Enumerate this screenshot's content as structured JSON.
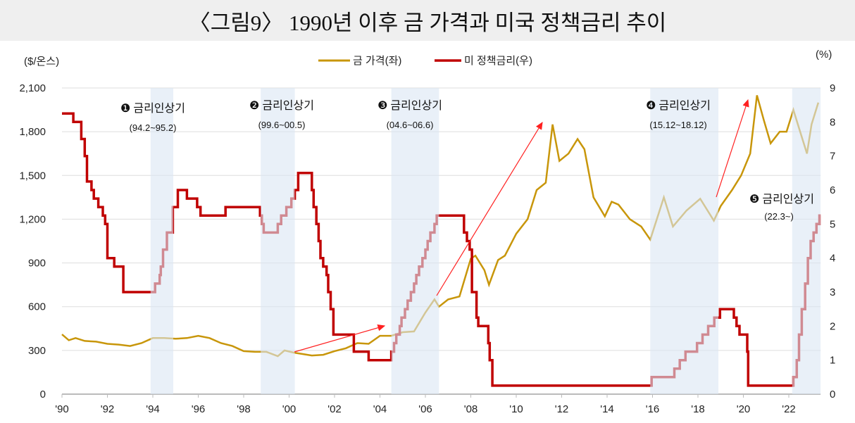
{
  "title": "〈그림9〉 1990년 이후 금 가격과 미국 정책금리 추이",
  "chart_data": {
    "type": "line",
    "title": "〈그림9〉 1990년 이후 금 가격과 미국 정책금리 추이",
    "left_axis_unit": "($/온스)",
    "right_axis_unit": "(%)",
    "ylim_left": [
      0,
      2100
    ],
    "ylim_right": [
      0,
      9
    ],
    "xlim": [
      1990,
      2023.4
    ],
    "left_ticks": [
      "0",
      "300",
      "600",
      "900",
      "1,200",
      "1,500",
      "1,800",
      "2,100"
    ],
    "right_ticks": [
      "0",
      "1",
      "2",
      "3",
      "4",
      "5",
      "6",
      "7",
      "8",
      "9"
    ],
    "x_ticks": [
      "'90",
      "'92",
      "'94",
      "'96",
      "'98",
      "'00",
      "'02",
      "'04",
      "'06",
      "'08",
      "'10",
      "'12",
      "'14",
      "'16",
      "'18",
      "'20",
      "'22"
    ],
    "grid": true,
    "legend_position": "top",
    "colors": {
      "gold": "#c8960a",
      "rate": "#c00000",
      "shade": "#dbe6f3",
      "arrow": "#ff2020"
    },
    "series": [
      {
        "name": "금 가격(좌)",
        "axis": "left",
        "x": [
          1990.0,
          1990.3,
          1990.6,
          1991.0,
          1991.5,
          1992.0,
          1992.5,
          1993.0,
          1993.5,
          1994.0,
          1994.5,
          1995.0,
          1995.5,
          1996.0,
          1996.5,
          1997.0,
          1997.5,
          1998.0,
          1998.5,
          1999.0,
          1999.5,
          1999.8,
          2000.2,
          2000.6,
          2001.0,
          2001.5,
          2002.0,
          2002.5,
          2003.0,
          2003.5,
          2004.0,
          2004.5,
          2005.0,
          2005.5,
          2006.0,
          2006.4,
          2006.6,
          2007.0,
          2007.5,
          2008.0,
          2008.2,
          2008.6,
          2008.8,
          2009.2,
          2009.5,
          2010.0,
          2010.5,
          2010.9,
          2011.3,
          2011.6,
          2011.9,
          2012.3,
          2012.7,
          2013.0,
          2013.4,
          2013.9,
          2014.2,
          2014.5,
          2015.0,
          2015.5,
          2015.9,
          2016.5,
          2016.9,
          2017.5,
          2018.1,
          2018.7,
          2019.0,
          2019.5,
          2019.9,
          2020.3,
          2020.6,
          2020.9,
          2021.2,
          2021.6,
          2021.9,
          2022.2,
          2022.5,
          2022.8,
          2023.0,
          2023.3
        ],
        "values": [
          410,
          370,
          385,
          365,
          360,
          345,
          340,
          330,
          350,
          385,
          385,
          380,
          385,
          400,
          385,
          350,
          330,
          295,
          290,
          290,
          260,
          300,
          285,
          275,
          265,
          270,
          295,
          315,
          350,
          345,
          400,
          400,
          425,
          430,
          560,
          650,
          600,
          650,
          670,
          930,
          950,
          850,
          750,
          920,
          950,
          1100,
          1200,
          1400,
          1450,
          1850,
          1600,
          1650,
          1750,
          1680,
          1350,
          1220,
          1320,
          1300,
          1200,
          1150,
          1060,
          1350,
          1150,
          1260,
          1340,
          1190,
          1290,
          1400,
          1500,
          1650,
          2050,
          1880,
          1720,
          1800,
          1800,
          1950,
          1800,
          1650,
          1850,
          2000
        ]
      },
      {
        "name": "미 정책금리(우)",
        "axis": "right",
        "step": true,
        "x": [
          1990.0,
          1990.5,
          1990.85,
          1991.0,
          1991.1,
          1991.3,
          1991.4,
          1991.6,
          1991.8,
          1991.9,
          1992.0,
          1992.3,
          1992.7,
          1994.1,
          1994.3,
          1994.35,
          1994.45,
          1994.62,
          1994.88,
          1995.1,
          1995.5,
          1995.95,
          1996.1,
          1997.2,
          1998.72,
          1998.8,
          1998.88,
          1999.5,
          1999.65,
          1999.88,
          2000.1,
          2000.25,
          2000.4,
          2001.0,
          2001.08,
          2001.2,
          2001.3,
          2001.38,
          2001.5,
          2001.65,
          2001.72,
          2001.83,
          2001.95,
          2002.85,
          2003.5,
          2004.5,
          2004.62,
          2004.72,
          2004.87,
          2004.95,
          2005.1,
          2005.22,
          2005.36,
          2005.5,
          2005.6,
          2005.72,
          2005.87,
          2006.0,
          2006.1,
          2006.22,
          2006.4,
          2006.5,
          2007.7,
          2007.83,
          2007.95,
          2008.05,
          2008.08,
          2008.25,
          2008.33,
          2008.77,
          2008.83,
          2008.95,
          2015.96,
          2016.96,
          2017.2,
          2017.45,
          2017.96,
          2018.2,
          2018.45,
          2018.72,
          2018.97,
          2019.58,
          2019.7,
          2019.83,
          2020.17,
          2020.21,
          2022.2,
          2022.35,
          2022.45,
          2022.57,
          2022.72,
          2022.84,
          2022.96,
          2023.09,
          2023.22,
          2023.35
        ],
        "values": [
          8.25,
          8.0,
          7.5,
          7.0,
          6.25,
          6.0,
          5.75,
          5.5,
          5.25,
          5.0,
          4.0,
          3.75,
          3.0,
          3.25,
          3.5,
          3.75,
          4.25,
          4.75,
          5.5,
          6.0,
          5.75,
          5.5,
          5.25,
          5.5,
          5.25,
          5.0,
          4.75,
          5.0,
          5.25,
          5.5,
          5.75,
          6.0,
          6.5,
          6.0,
          5.5,
          5.0,
          4.5,
          4.0,
          3.75,
          3.5,
          3.0,
          2.5,
          1.75,
          1.25,
          1.0,
          1.25,
          1.5,
          1.75,
          2.0,
          2.25,
          2.5,
          2.75,
          3.0,
          3.25,
          3.5,
          3.75,
          4.0,
          4.25,
          4.5,
          4.75,
          5.0,
          5.25,
          4.75,
          4.5,
          4.25,
          3.0,
          3.0,
          2.25,
          2.0,
          1.5,
          1.0,
          0.25,
          0.5,
          0.75,
          1.0,
          1.25,
          1.5,
          1.75,
          2.0,
          2.25,
          2.5,
          2.25,
          2.0,
          1.75,
          1.25,
          0.25,
          0.5,
          1.0,
          1.75,
          2.5,
          3.25,
          4.0,
          4.5,
          4.75,
          5.0,
          5.25
        ]
      }
    ],
    "hike_periods": [
      {
        "num": "❶",
        "label": "금리인상기",
        "range": "(94.2~95.2)",
        "start": 1993.9,
        "end": 1994.9
      },
      {
        "num": "❷",
        "label": "금리인상기",
        "range": "(99.6~00.5)",
        "start": 1998.75,
        "end": 2000.25
      },
      {
        "num": "❸",
        "label": "금리인상기",
        "range": "(04.6~06.6)",
        "start": 2004.5,
        "end": 2006.6
      },
      {
        "num": "❹",
        "label": "금리인상기",
        "range": "(15.12~18.12)",
        "start": 2015.9,
        "end": 2018.9
      },
      {
        "num": "❺",
        "label": "금리인상기",
        "range": "(22.3~)",
        "start": 2022.15,
        "end": 2023.4
      }
    ]
  }
}
